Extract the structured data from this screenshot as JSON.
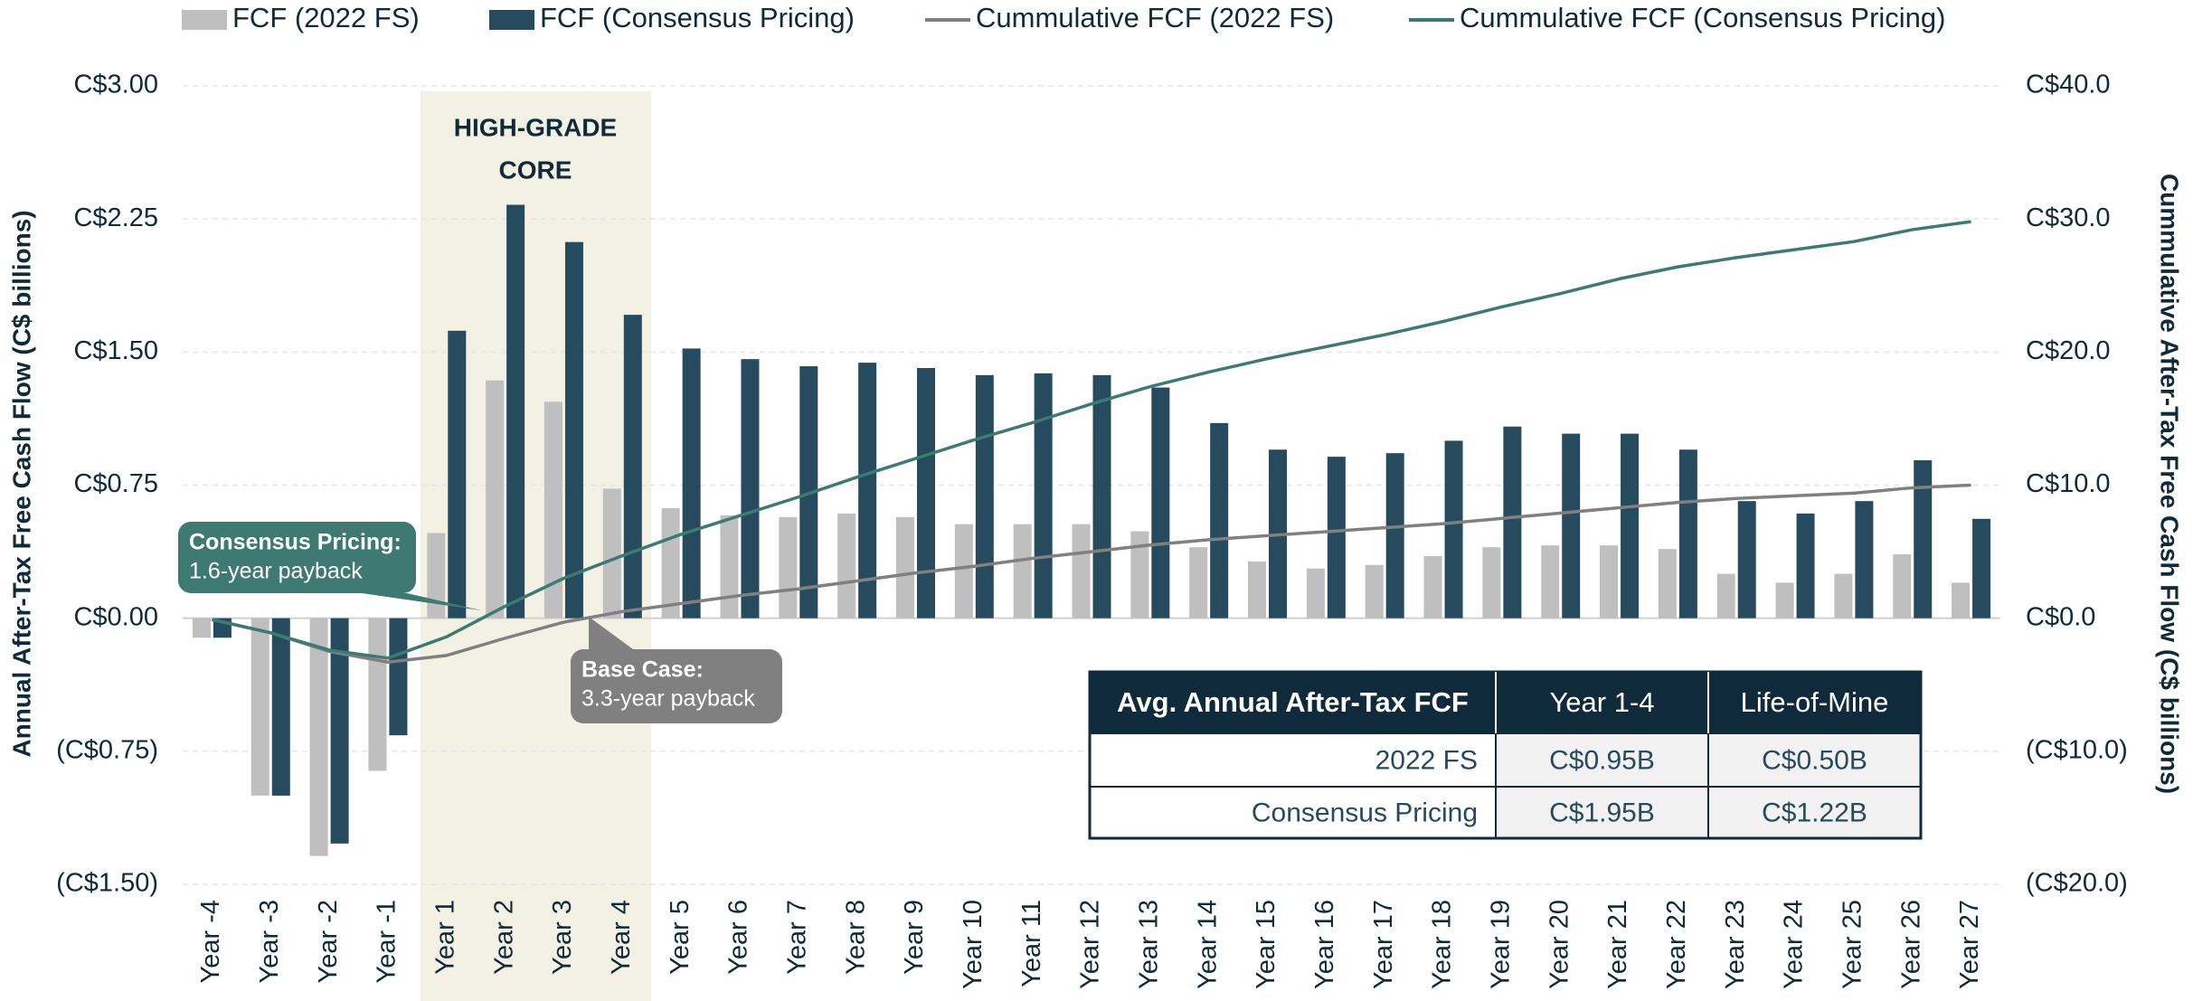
{
  "chart_data": {
    "type": "combo",
    "categories": [
      "Year -4",
      "Year -3",
      "Year -2",
      "Year -1",
      "Year 1",
      "Year 2",
      "Year 3",
      "Year 4",
      "Year 5",
      "Year 6",
      "Year 7",
      "Year 8",
      "Year 9",
      "Year 10",
      "Year 11",
      "Year 12",
      "Year 13",
      "Year 14",
      "Year 15",
      "Year 16",
      "Year 17",
      "Year 18",
      "Year 19",
      "Year 20",
      "Year 21",
      "Year 22",
      "Year 23",
      "Year 24",
      "Year 25",
      "Year 26",
      "Year 27"
    ],
    "series": [
      {
        "name": "FCF (2022 FS)",
        "type": "bar",
        "color": "#bfbfbf",
        "values": [
          -0.11,
          -1.0,
          -1.34,
          -0.86,
          0.48,
          1.34,
          1.22,
          0.73,
          0.62,
          0.58,
          0.57,
          0.59,
          0.57,
          0.53,
          0.53,
          0.53,
          0.49,
          0.4,
          0.32,
          0.28,
          0.3,
          0.35,
          0.4,
          0.41,
          0.41,
          0.39,
          0.25,
          0.2,
          0.25,
          0.36,
          0.2
        ]
      },
      {
        "name": "FCF (Consensus Pricing)",
        "type": "bar",
        "color": "#264a5e",
        "values": [
          -0.11,
          -1.0,
          -1.27,
          -0.66,
          1.62,
          2.33,
          2.12,
          1.71,
          1.52,
          1.46,
          1.42,
          1.44,
          1.41,
          1.37,
          1.38,
          1.37,
          1.3,
          1.1,
          0.95,
          0.91,
          0.93,
          1.0,
          1.08,
          1.04,
          1.04,
          0.95,
          0.66,
          0.59,
          0.66,
          0.89,
          0.56
        ]
      },
      {
        "name": "Cummulative FCF (2022 FS)",
        "type": "line",
        "axis": "y2",
        "color": "#808080",
        "values": [
          -0.1,
          -1.1,
          -2.5,
          -3.3,
          -2.8,
          -1.5,
          -0.3,
          0.5,
          1.1,
          1.7,
          2.2,
          2.8,
          3.4,
          3.9,
          4.5,
          5.0,
          5.5,
          5.9,
          6.2,
          6.5,
          6.8,
          7.1,
          7.5,
          7.9,
          8.3,
          8.7,
          9.0,
          9.2,
          9.4,
          9.8,
          10.0
        ]
      },
      {
        "name": "Cummulative FCF (Consensus Pricing)",
        "type": "line",
        "axis": "y2",
        "color": "#3f7a72",
        "values": [
          -0.1,
          -1.1,
          -2.4,
          -3.0,
          -1.4,
          0.9,
          3.0,
          4.7,
          6.3,
          7.7,
          9.1,
          10.6,
          12.0,
          13.4,
          14.7,
          16.1,
          17.4,
          18.5,
          19.5,
          20.4,
          21.3,
          22.3,
          23.4,
          24.4,
          25.5,
          26.4,
          27.1,
          27.7,
          28.3,
          29.2,
          29.8
        ]
      }
    ],
    "ylim": [
      -1.5,
      3.0
    ],
    "yticks": [
      {
        "value": -1.5,
        "label": "(C$1.50)"
      },
      {
        "value": -0.75,
        "label": "(C$0.75)"
      },
      {
        "value": 0,
        "label": "C$0.00"
      },
      {
        "value": 0.75,
        "label": "C$0.75"
      },
      {
        "value": 1.5,
        "label": "C$1.50"
      },
      {
        "value": 2.25,
        "label": "C$2.25"
      },
      {
        "value": 3.0,
        "label": "C$3.00"
      }
    ],
    "y2lim": [
      -20,
      40
    ],
    "y2ticks": [
      {
        "value": -20,
        "label": "(C$20.0)"
      },
      {
        "value": -10,
        "label": "(C$10.0)"
      },
      {
        "value": 0,
        "label": "C$0.0"
      },
      {
        "value": 10,
        "label": "C$10.0"
      },
      {
        "value": 20,
        "label": "C$20.0"
      },
      {
        "value": 30,
        "label": "C$30.0"
      },
      {
        "value": 40,
        "label": "C$40.0"
      }
    ],
    "ylabel": "Annual After-Tax Free Cash Flow (C$ billions)",
    "y2label": "Cummulative After-Tax Free Cash Flow (C$ billions)",
    "grid": true,
    "legend": "top",
    "highlight": [
      "HIGH-GRADE",
      "CORE"
    ],
    "callouts": [
      {
        "title": "Consensus Pricing:",
        "text": "1.6-year payback"
      },
      {
        "title": "Base Case:",
        "text": "3.3-year payback"
      }
    ]
  },
  "table": {
    "header": [
      "Avg. Annual After-Tax FCF",
      "Year 1-4",
      "Life-of-Mine"
    ],
    "rows": [
      [
        "2022 FS",
        "C$0.95B",
        "C$0.50B"
      ],
      [
        "Consensus Pricing",
        "C$1.95B",
        "C$1.22B"
      ]
    ]
  }
}
